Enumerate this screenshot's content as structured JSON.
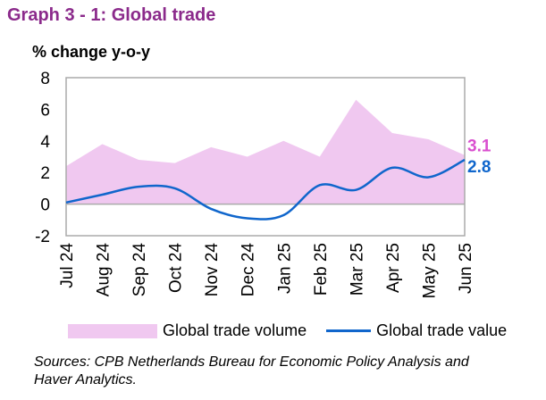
{
  "chart_data": {
    "type": "area+line",
    "title": "Graph 3 - 1: Global trade",
    "ylabel": "% change y-o-y",
    "ylim": [
      -2,
      8
    ],
    "yticks": [
      "8",
      "6",
      "4",
      "2",
      "0",
      "-2"
    ],
    "categories": [
      "Jul 24",
      "Aug 24",
      "Sep 24",
      "Oct 24",
      "Nov 24",
      "Dec 24",
      "Jan 25",
      "Feb 25",
      "Mar 25",
      "Apr 25",
      "May 25",
      "Jun 25"
    ],
    "series": [
      {
        "name": "Global trade volume",
        "type": "area",
        "color": "#F0C8F0",
        "values": [
          2.4,
          3.8,
          2.8,
          2.6,
          3.6,
          3.0,
          4.0,
          3.0,
          6.6,
          4.5,
          4.1,
          3.1
        ],
        "end_label": "3.1",
        "end_label_color": "#D94FCF"
      },
      {
        "name": "Global trade value",
        "type": "line",
        "color": "#1066CC",
        "values": [
          0.1,
          0.6,
          1.1,
          1.0,
          -0.3,
          -0.9,
          -0.7,
          1.2,
          0.9,
          2.3,
          1.7,
          2.8
        ],
        "end_label": "2.8",
        "end_label_color": "#1066CC"
      }
    ],
    "grid": false,
    "legend": "bottom"
  },
  "source": "Sources: CPB Netherlands Bureau for Economic Policy Analysis and Haver Analytics."
}
